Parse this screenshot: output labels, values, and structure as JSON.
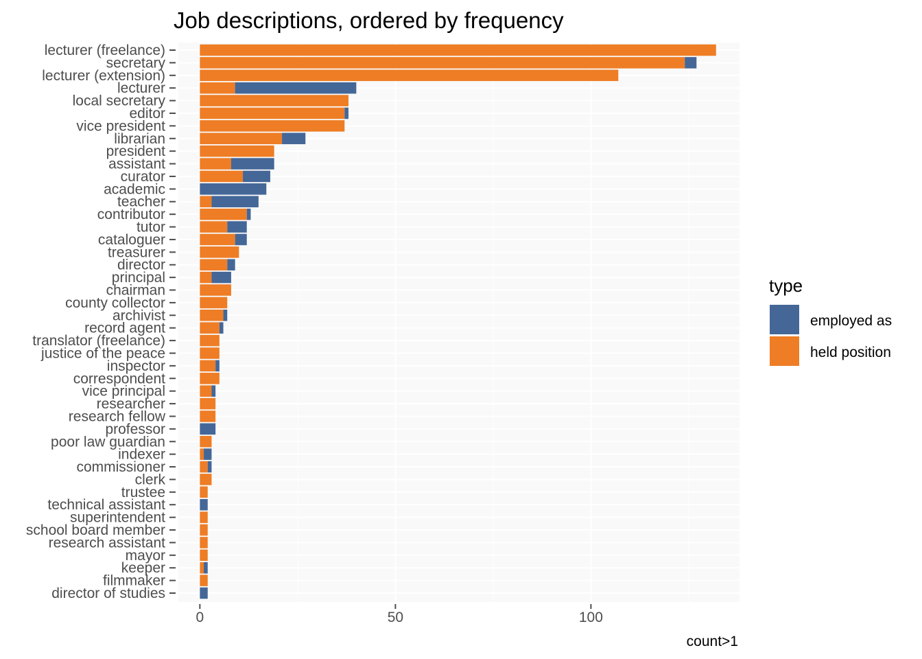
{
  "chart_data": {
    "type": "bar",
    "orientation": "horizontal",
    "stacked": true,
    "title": "Job descriptions, ordered by frequency",
    "xlabel": "count>1",
    "ylabel": "",
    "xlim": [
      -5.5,
      138
    ],
    "xticks": [
      0,
      50,
      100
    ],
    "grid": true,
    "legend": {
      "title": "type",
      "placement": "right"
    },
    "categories": [
      "lecturer (freelance)",
      "secretary",
      "lecturer (extension)",
      "lecturer",
      "local secretary",
      "editor",
      "vice president",
      "librarian",
      "president",
      "assistant",
      "curator",
      "academic",
      "teacher",
      "contributor",
      "tutor",
      "cataloguer",
      "treasurer",
      "director",
      "principal",
      "chairman",
      "county collector",
      "archivist",
      "record agent",
      "translator (freelance)",
      "justice of the peace",
      "inspector",
      "correspondent",
      "vice principal",
      "researcher",
      "research fellow",
      "professor",
      "poor law guardian",
      "indexer",
      "commissioner",
      "clerk",
      "trustee",
      "technical assistant",
      "superintendent",
      "school board member",
      "research assistant",
      "mayor",
      "keeper",
      "filmmaker",
      "director of studies"
    ],
    "series": [
      {
        "name": "held position",
        "color": "#ee7d25",
        "values": [
          132,
          124,
          107,
          9,
          38,
          37,
          37,
          21,
          19,
          8,
          11,
          0,
          3,
          12,
          7,
          9,
          10,
          7,
          3,
          8,
          7,
          6,
          5,
          5,
          5,
          4,
          5,
          3,
          4,
          4,
          0,
          3,
          1,
          2,
          3,
          2,
          0,
          2,
          2,
          2,
          2,
          1,
          2,
          0
        ]
      },
      {
        "name": "employed as",
        "color": "#446798",
        "values": [
          0,
          3,
          0,
          31,
          0,
          1,
          0,
          6,
          0,
          11,
          7,
          17,
          12,
          1,
          5,
          3,
          0,
          2,
          5,
          0,
          0,
          1,
          1,
          0,
          0,
          1,
          0,
          1,
          0,
          0,
          4,
          0,
          2,
          1,
          0,
          0,
          2,
          0,
          0,
          0,
          0,
          1,
          0,
          2
        ]
      }
    ]
  }
}
